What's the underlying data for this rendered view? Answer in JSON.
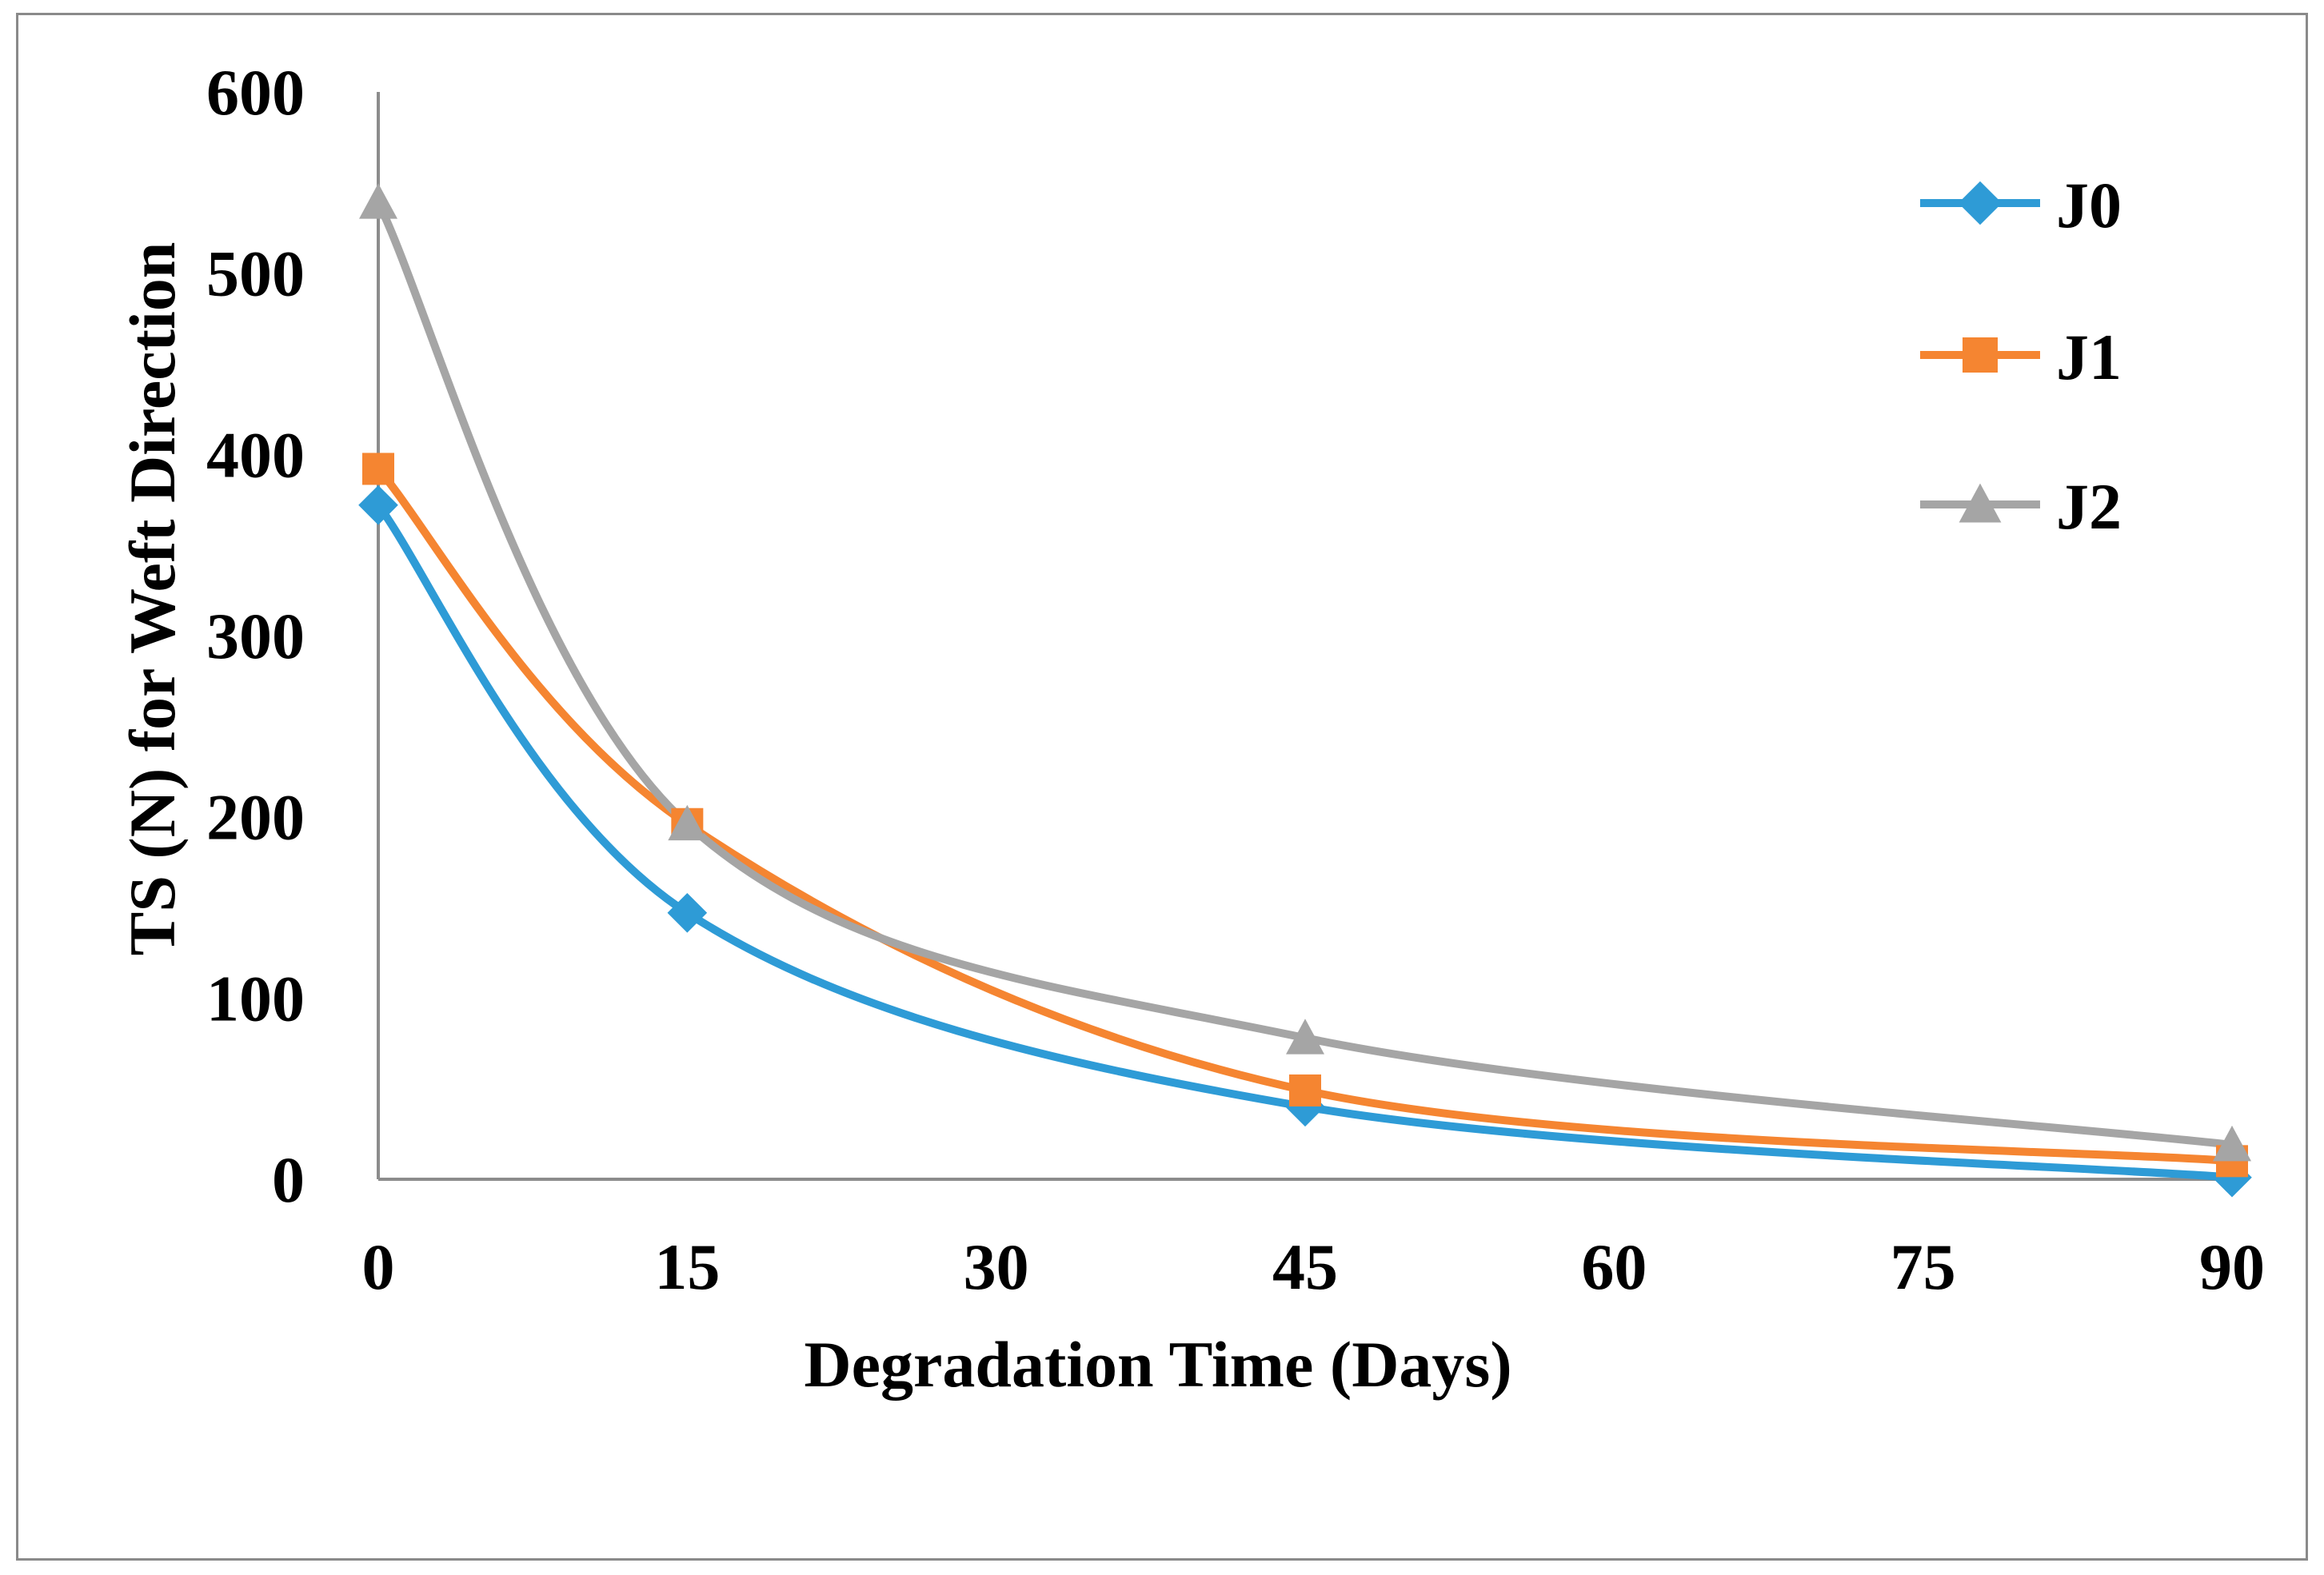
{
  "chart_data": {
    "type": "line",
    "title": "",
    "xlabel": "Degradation Time (Days)",
    "ylabel": "TS (N) for Weft Direction",
    "x": [
      0,
      15,
      45,
      90
    ],
    "xticks": [
      "0",
      "15",
      "30",
      "45",
      "60",
      "75",
      "90"
    ],
    "xtick_values": [
      0,
      15,
      30,
      45,
      60,
      75,
      90
    ],
    "yticks": [
      "0",
      "100",
      "200",
      "300",
      "400",
      "500",
      "600"
    ],
    "ytick_values": [
      0,
      100,
      200,
      300,
      400,
      500,
      600
    ],
    "xlim": [
      0,
      90
    ],
    "ylim": [
      0,
      600
    ],
    "grid": false,
    "smooth": true,
    "legend": {
      "position": "top-right",
      "entries": [
        "J0",
        "J1",
        "J2"
      ]
    },
    "series": [
      {
        "name": "J0",
        "marker": "diamond",
        "color": "#2e9bd6",
        "values": [
          372,
          147,
          40,
          1
        ]
      },
      {
        "name": "J1",
        "marker": "square",
        "color": "#f58531",
        "values": [
          392,
          196,
          49,
          10
        ]
      },
      {
        "name": "J2",
        "marker": "triangle",
        "color": "#a5a5a5",
        "values": [
          539,
          196,
          78,
          19
        ]
      }
    ]
  }
}
